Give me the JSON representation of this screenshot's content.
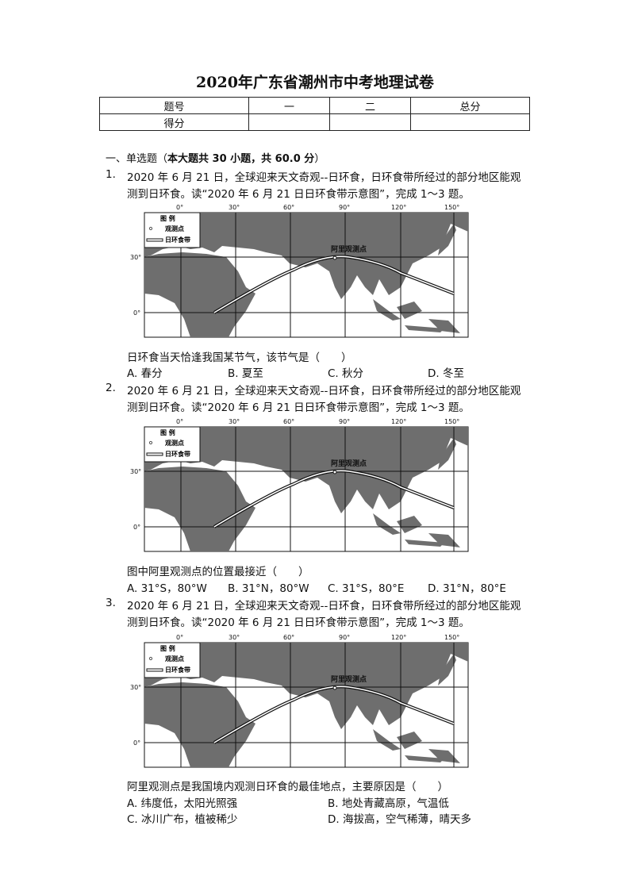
{
  "title": "2020年广东省潮州市中考地理试卷",
  "score_table": {
    "headers": [
      "题号",
      "一",
      "二",
      "总分"
    ],
    "row_label": "得分"
  },
  "section": {
    "prefix": "一、单选题（",
    "bold": "本大题共 30 小题，共 60.0 分",
    "suffix": "）"
  },
  "map": {
    "lon_labels": [
      "0°",
      "30°",
      "60°",
      "90°",
      "120°",
      "150°"
    ],
    "lat_labels": [
      "30°",
      "0°"
    ],
    "legend_title": "图 例",
    "legend_point": "观测点",
    "legend_band": "日环食带",
    "site_label": "阿里观测点",
    "colors": {
      "land": "#6e6e6e",
      "sea": "#ffffff",
      "grid": "#111111"
    }
  },
  "questions": [
    {
      "number": "1.",
      "stem_line1": "2020 年 6 月 21 日，全球迎来天文奇观--日环食，日环食带所经过的部分地区能观",
      "stem_line2": "测到日环食。读“2020 年 6 月 21 日日环食带示意图”，完成 1～3 题。",
      "question": "日环食当天恰逢我国某节气，该节气是（　　）",
      "options": [
        "A. 春分",
        "B. 夏至",
        "C. 秋分",
        "D. 冬至"
      ]
    },
    {
      "number": "2.",
      "stem_line1": "2020 年 6 月 21 日，全球迎来天文奇观--日环食，日环食带所经过的部分地区能观",
      "stem_line2": "测到日环食。读“2020 年 6 月 21 日日环食带示意图”，完成 1～3 题。",
      "question": "图中阿里观测点的位置最接近（　　）",
      "options": [
        "A. 31°S，80°W",
        "B. 31°N，80°W",
        "C. 31°S，80°E",
        "D. 31°N，80°E"
      ]
    },
    {
      "number": "3.",
      "stem_line1": "2020 年 6 月 21 日，全球迎来天文奇观--日环食，日环食带所经过的部分地区能观",
      "stem_line2": "测到日环食。读“2020 年 6 月 21 日日环食带示意图”，完成 1～3 题。",
      "question": "阿里观测点是我国境内观测日环食的最佳地点，主要原因是（　　）",
      "options": [
        "A. 纬度低，太阳光照强",
        "B. 地处青藏高原，气温低",
        "C. 冰川广布，植被稀少",
        "D. 海拔高，空气稀薄，晴天多"
      ]
    }
  ]
}
